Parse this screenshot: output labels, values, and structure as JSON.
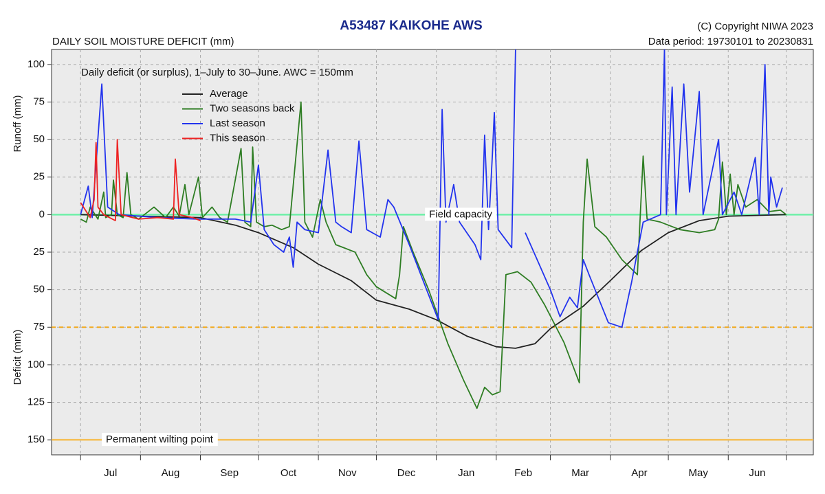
{
  "chart_data": {
    "type": "line",
    "title": "A53487  KAIKOHE AWS",
    "subtitle": "DAILY SOIL MOISTURE DEFICIT (mm)",
    "copyright": "(C) Copyright NIWA  2023",
    "data_period": "Data period:  19730101  to  20230831",
    "ylabel_top": "Runoff (mm)",
    "ylabel_bottom": "Deficit (mm)",
    "annotation": "Daily deficit (or surplus), 1–July to 30–June.  AWC = 150mm",
    "legend": "upper left",
    "grid": true,
    "categories": [
      "Jul",
      "Aug",
      "Sep",
      "Oct",
      "Nov",
      "Dec",
      "Jan",
      "Feb",
      "Mar",
      "Apr",
      "May",
      "Jun"
    ],
    "xlim": [
      -15,
      379
    ],
    "xticks": [
      0,
      31,
      62,
      92,
      123,
      153,
      184,
      215,
      243,
      274,
      304,
      335,
      365
    ],
    "ylim": [
      -160,
      110
    ],
    "yticks": [
      100,
      75,
      50,
      25,
      0,
      {
        "value": -25,
        "label": "25"
      },
      {
        "value": -50,
        "label": "50"
      },
      {
        "value": -75,
        "label": "75"
      },
      {
        "value": -100,
        "label": "100"
      },
      {
        "value": -125,
        "label": "125"
      },
      {
        "value": -150,
        "label": "150"
      }
    ],
    "reference_lines": [
      {
        "label": "Field capacity",
        "value": 0,
        "color": "#6ef0a8",
        "style": "solid"
      },
      {
        "value": -75,
        "color": "#f2a91c",
        "style": "dashed"
      },
      {
        "label": "Permanent wilting point",
        "value": -150,
        "color": "#f5bf55",
        "style": "solid"
      }
    ],
    "series": [
      {
        "name": "Average",
        "color": "#222222",
        "x": [
          0,
          31,
          62,
          80,
          92,
          110,
          123,
          140,
          153,
          170,
          184,
          200,
          215,
          225,
          235,
          243,
          260,
          274,
          290,
          304,
          320,
          335,
          365
        ],
        "values": [
          0,
          -1,
          -2,
          -7,
          -12,
          -22,
          -33,
          -44,
          -57,
          -63,
          -70,
          -81,
          -88,
          -89,
          -86,
          -76,
          -61,
          -44,
          -24,
          -12,
          -4,
          -1,
          0
        ]
      },
      {
        "name": "Two seasons back",
        "color": "#2e7d23",
        "x": [
          0,
          3,
          5,
          9,
          12,
          13,
          16,
          17,
          19,
          22,
          24,
          26,
          30,
          38,
          44,
          48,
          51,
          54,
          56,
          61,
          63,
          68,
          72,
          76,
          83,
          85,
          88,
          89,
          91,
          95,
          99,
          104,
          108,
          114,
          116,
          120,
          124,
          127,
          132,
          136,
          142,
          148,
          153,
          163,
          165,
          167,
          172,
          180,
          190,
          198,
          205,
          209,
          213,
          217,
          220,
          226,
          233,
          240,
          250,
          258,
          260,
          262,
          266,
          272,
          280,
          288,
          291,
          293,
          300,
          310,
          320,
          328,
          330,
          332,
          334,
          336,
          338,
          340,
          344,
          350,
          356,
          362,
          365
        ],
        "values": [
          -3,
          -5,
          5,
          -3,
          15,
          -2,
          0,
          23,
          0,
          -2,
          28,
          0,
          -3,
          5,
          -2,
          5,
          -1,
          20,
          0,
          25,
          -2,
          5,
          -2,
          -5,
          44,
          -5,
          -8,
          45,
          -5,
          -8,
          -7,
          -10,
          -8,
          75,
          -5,
          -15,
          10,
          -5,
          -20,
          -22,
          -25,
          -40,
          -48,
          -56,
          -40,
          -8,
          -25,
          -50,
          -86,
          -110,
          -129,
          -115,
          -120,
          -118,
          -40,
          -38,
          -45,
          -60,
          -85,
          -112,
          -5,
          37,
          -8,
          -15,
          -30,
          -40,
          39,
          -3,
          -5,
          -10,
          -12,
          -10,
          -3,
          35,
          0,
          27,
          0,
          20,
          5,
          10,
          2,
          3,
          0
        ]
      },
      {
        "name": "Last season",
        "color": "#2233ee",
        "x": [
          0,
          4,
          6,
          11,
          14,
          20,
          40,
          60,
          80,
          88,
          92,
          95,
          100,
          105,
          108,
          110,
          112,
          116,
          123,
          128,
          132,
          135,
          140,
          144,
          148,
          155,
          159,
          162,
          170,
          176,
          185,
          187,
          189,
          193,
          196,
          204,
          207,
          209,
          211,
          213,
          214,
          216,
          223,
          225,
          null,
          230,
          243,
          248,
          253,
          257,
          260,
          263,
          273,
          280,
          285,
          291,
          300,
          302,
          303,
          306,
          308,
          312,
          315,
          320,
          322,
          330,
          332,
          338,
          342,
          349,
          351,
          354,
          356,
          357,
          360,
          363
        ],
        "values": [
          0,
          19,
          -2,
          87,
          5,
          0,
          -2,
          -3,
          -3,
          -5,
          33,
          -10,
          -20,
          -25,
          -15,
          -35,
          -5,
          -10,
          -12,
          43,
          -5,
          -8,
          -12,
          49,
          -10,
          -15,
          10,
          5,
          -20,
          -40,
          -70,
          70,
          -5,
          20,
          -5,
          -20,
          -30,
          53,
          -10,
          40,
          68,
          -10,
          -22,
          110,
          null,
          -12,
          -50,
          -68,
          -55,
          -62,
          -30,
          -40,
          -72,
          -75,
          -45,
          -5,
          0,
          110,
          0,
          85,
          0,
          87,
          15,
          82,
          0,
          50,
          0,
          15,
          0,
          38,
          0,
          100,
          0,
          25,
          5,
          18
        ]
      },
      {
        "name": "This season",
        "color": "#ee2222",
        "x": [
          0,
          3,
          5,
          7,
          8,
          9,
          12,
          18,
          19,
          21,
          30,
          40,
          48,
          49,
          51,
          58,
          62
        ],
        "values": [
          8,
          2,
          -2,
          10,
          48,
          5,
          0,
          -4,
          50,
          0,
          -3,
          -2,
          -3,
          37,
          0,
          -2,
          -4
        ]
      }
    ]
  }
}
